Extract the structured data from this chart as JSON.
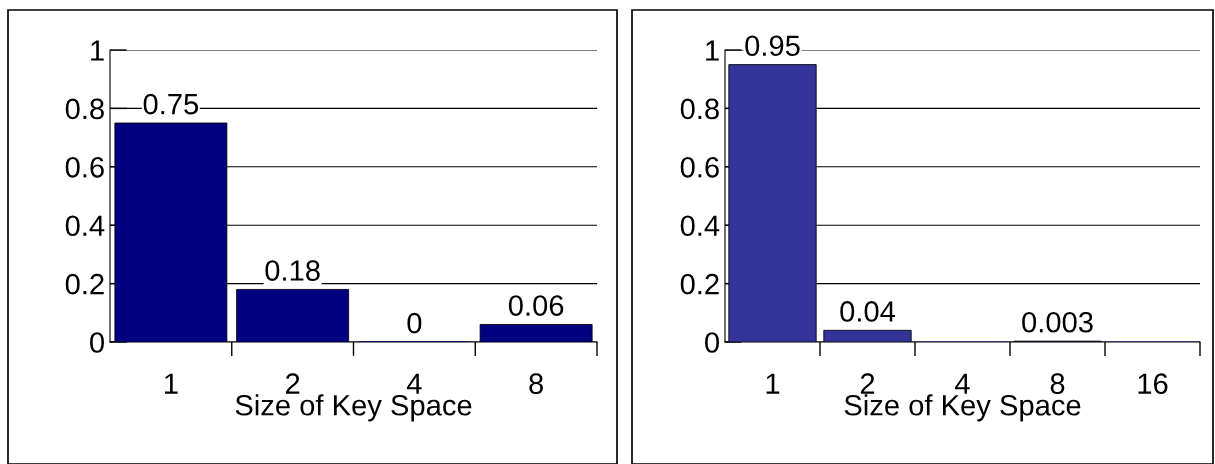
{
  "chart_data": [
    {
      "type": "bar",
      "xlabel": "Size of Key Space",
      "categories": [
        "1",
        "2",
        "4",
        "8"
      ],
      "series": [
        {
          "color": "#000080",
          "values": [
            0.75,
            0.18,
            0,
            0.06
          ]
        }
      ],
      "ylim": [
        0,
        1
      ],
      "yticks": [
        0,
        0.2,
        0.4,
        0.6,
        0.8,
        1
      ],
      "grid": "y",
      "data_labels": true
    },
    {
      "type": "bar",
      "xlabel": "Size of Key Space",
      "categories": [
        "1",
        "2",
        "4",
        "8",
        "16"
      ],
      "series": [
        {
          "color": "#333399",
          "values": [
            0.95,
            0.04,
            0,
            0.003,
            0
          ],
          "value_labels": [
            "0.95",
            "0.04",
            null,
            "0.003",
            null
          ]
        }
      ],
      "ylim": [
        0,
        1
      ],
      "yticks": [
        0,
        0.2,
        0.4,
        0.6,
        0.8,
        1
      ],
      "grid": "y"
    }
  ]
}
